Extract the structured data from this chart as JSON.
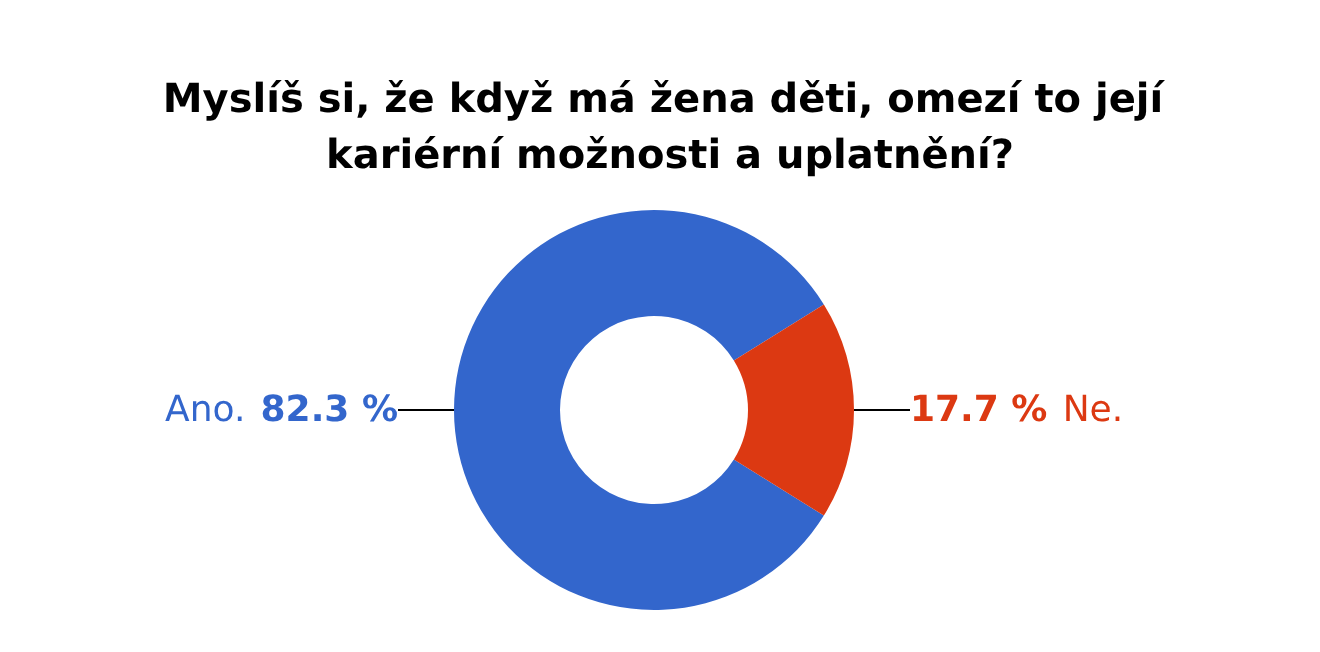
{
  "chart_data": {
    "type": "donut",
    "title": "Myslíš si, že když má žena děti, omezí to její kariérní možnosti a uplatnění?",
    "categories": [
      "Ano.",
      "Ne."
    ],
    "values": [
      82.3,
      17.7
    ],
    "colors": [
      "#3366cc",
      "#dc3912"
    ],
    "value_labels": [
      "82.3 %",
      "17.7 %"
    ],
    "legend": false
  }
}
